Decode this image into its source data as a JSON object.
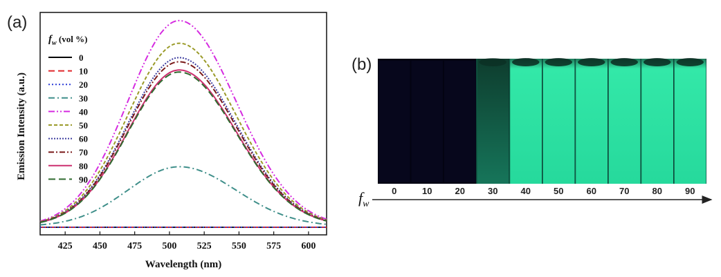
{
  "panel_a": {
    "label": "(a)"
  },
  "panel_b": {
    "label": "(b)",
    "axis_symbol": "f",
    "axis_subscript": "w",
    "dark_color": "#030312",
    "glow_color": "#2ee8a6"
  },
  "chart_data": [
    {
      "type": "line",
      "xlabel": "Wavelength (nm)",
      "ylabel": "Emission Intensity (a.u.)",
      "xlim": [
        407,
        613
      ],
      "ylim": [
        0,
        1.0
      ],
      "xticks": [
        425,
        450,
        475,
        500,
        525,
        550,
        575,
        600
      ],
      "yticks": [],
      "grid": false,
      "legend_placement": "top-left",
      "legend_title_symbol": "f",
      "legend_title_subscript": "w",
      "legend_title_rest": " (vol %)",
      "peak_wavelength": 507,
      "series": [
        {
          "name": "0",
          "peak": 0.0,
          "color": "#000000",
          "dash": ""
        },
        {
          "name": "10",
          "peak": 0.0,
          "color": "#e0262a",
          "dash": "9,5"
        },
        {
          "name": "20",
          "peak": 0.0,
          "color": "#2b3bd6",
          "dash": "2,3"
        },
        {
          "name": "30",
          "peak": 0.29,
          "color": "#3f8f8a",
          "dash": "9,4,2,4"
        },
        {
          "name": "40",
          "peak": 1.0,
          "color": "#d52be0",
          "dash": "9,3,2,3,2,3"
        },
        {
          "name": "50",
          "peak": 0.89,
          "color": "#9a9a28",
          "dash": "5,3"
        },
        {
          "name": "60",
          "peak": 0.82,
          "color": "#3c3c9e",
          "dash": "2,2"
        },
        {
          "name": "70",
          "peak": 0.8,
          "color": "#7a1a1a",
          "dash": "8,3,2,3"
        },
        {
          "name": "80",
          "peak": 0.76,
          "color": "#cc2e6e",
          "dash": ""
        },
        {
          "name": "90",
          "peak": 0.75,
          "color": "#2f6a2f",
          "dash": "10,5"
        }
      ]
    }
  ],
  "vials": [
    {
      "label": "0",
      "on": false
    },
    {
      "label": "10",
      "on": false
    },
    {
      "label": "20",
      "on": false
    },
    {
      "label": "30",
      "on": true,
      "dim": true
    },
    {
      "label": "40",
      "on": true
    },
    {
      "label": "50",
      "on": true
    },
    {
      "label": "60",
      "on": true
    },
    {
      "label": "70",
      "on": true
    },
    {
      "label": "80",
      "on": true
    },
    {
      "label": "90",
      "on": true
    }
  ]
}
